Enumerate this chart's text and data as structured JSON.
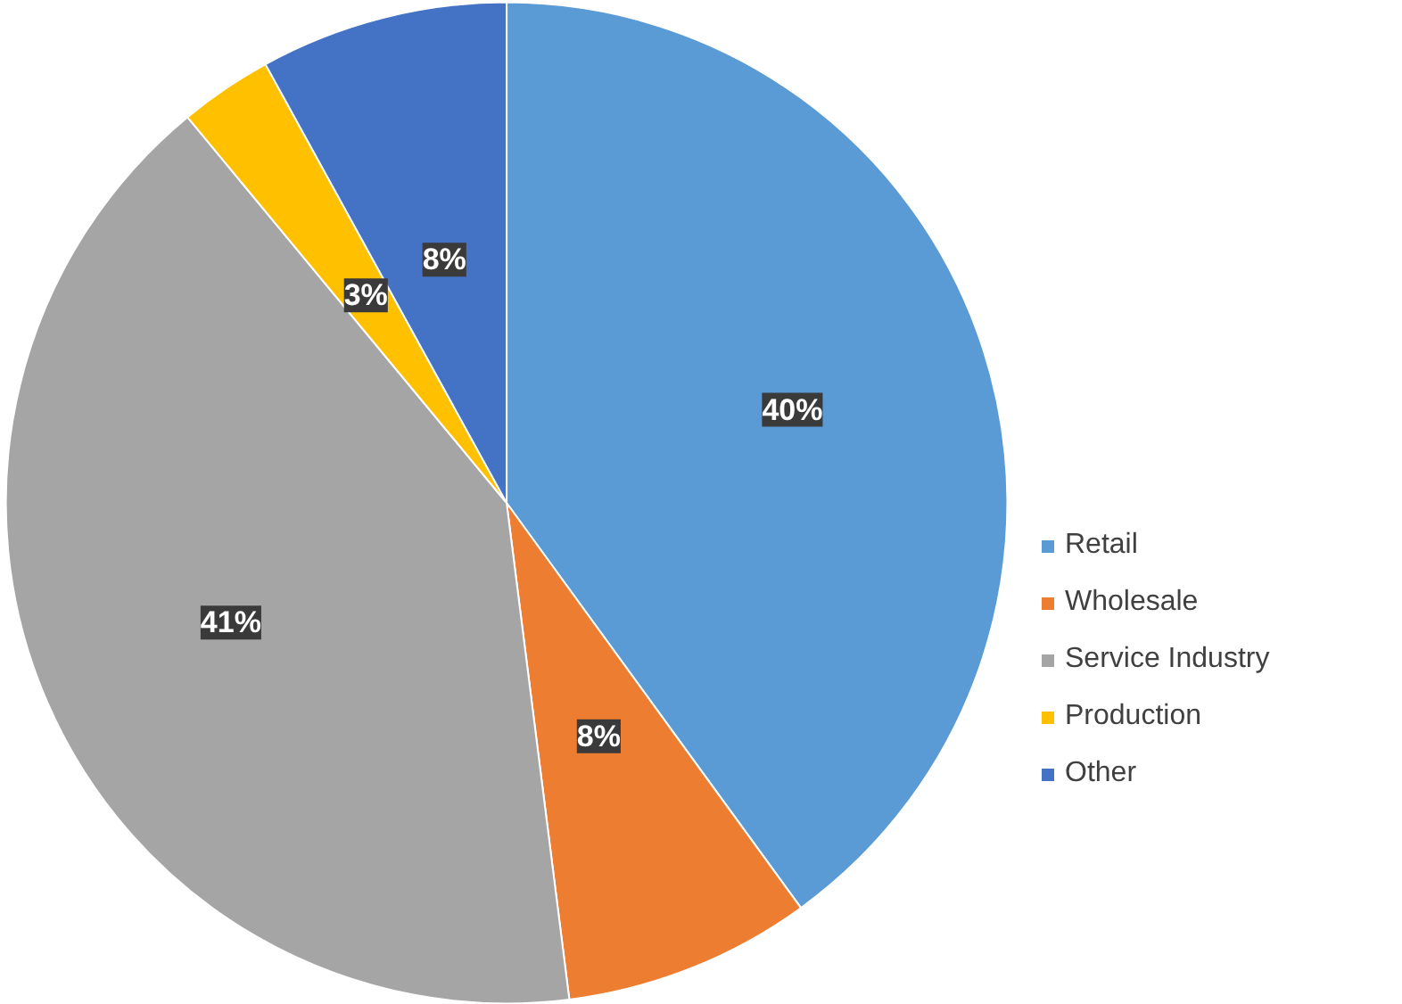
{
  "chart_data": {
    "type": "pie",
    "categories": [
      "Retail",
      "Wholesale",
      "Service Industry",
      "Production",
      "Other"
    ],
    "values": [
      40,
      8,
      41,
      3,
      8
    ],
    "value_labels": [
      "40%",
      "8%",
      "41%",
      "3%",
      "8%"
    ],
    "colors": [
      "#5b9bd5",
      "#ed7d31",
      "#a5a5a5",
      "#ffc000",
      "#4472c4"
    ],
    "legend": "right"
  }
}
